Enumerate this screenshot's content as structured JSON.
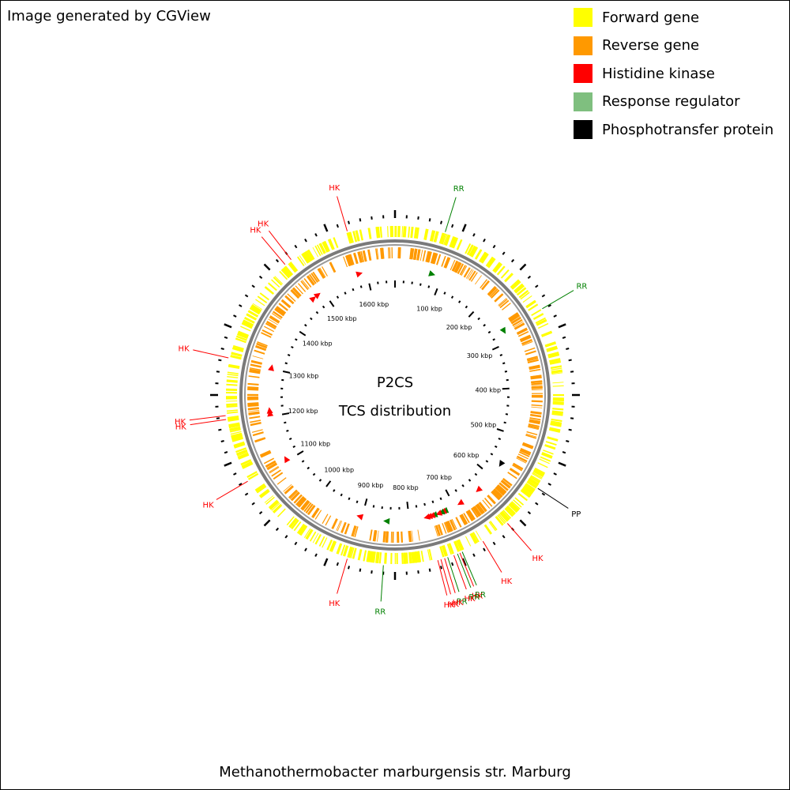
{
  "credit": "Image generated by CGView",
  "legend": [
    {
      "label": "Forward gene",
      "color": "#ffff00"
    },
    {
      "label": "Reverse gene",
      "color": "#ff9900"
    },
    {
      "label": "Histidine kinase",
      "color": "#ff0000"
    },
    {
      "label": "Response regulator",
      "color": "#7fbf7f"
    },
    {
      "label": "Phosphotransfer protein",
      "color": "#000000"
    }
  ],
  "center": {
    "line1": "P2CS",
    "line2": "TCS distribution"
  },
  "species": "Methanothermobacter marburgensis str. Marburg",
  "ticks": [
    {
      "label": "100 kbp",
      "kbp": 100
    },
    {
      "label": "200 kbp",
      "kbp": 200
    },
    {
      "label": "300 kbp",
      "kbp": 300
    },
    {
      "label": "400 kbp",
      "kbp": 400
    },
    {
      "label": "500 kbp",
      "kbp": 500
    },
    {
      "label": "600 kbp",
      "kbp": 600
    },
    {
      "label": "700 kbp",
      "kbp": 700
    },
    {
      "label": "800 kbp",
      "kbp": 800
    },
    {
      "label": "900 kbp",
      "kbp": 900
    },
    {
      "label": "1000 kbp",
      "kbp": 1000
    },
    {
      "label": "1100 kbp",
      "kbp": 1100
    },
    {
      "label": "1200 kbp",
      "kbp": 1200
    },
    {
      "label": "1300 kbp",
      "kbp": 1300
    },
    {
      "label": "1400 kbp",
      "kbp": 1400
    },
    {
      "label": "1500 kbp",
      "kbp": 1500
    },
    {
      "label": "1600 kbp",
      "kbp": 1600
    }
  ],
  "features": [
    {
      "label": "RR",
      "type": "RR",
      "kbp": 79
    },
    {
      "label": "RR",
      "type": "RR",
      "kbp": 275
    },
    {
      "label": "PP",
      "type": "PP",
      "kbp": 568
    },
    {
      "label": "HK",
      "type": "HK",
      "kbp": 640
    },
    {
      "label": "HK",
      "type": "HK",
      "kbp": 687
    },
    {
      "label": "RR",
      "type": "RR",
      "kbp": 723
    },
    {
      "label": "HK",
      "type": "HK",
      "kbp": 727
    },
    {
      "label": "RR",
      "type": "RR",
      "kbp": 731
    },
    {
      "label": "HK",
      "type": "HK",
      "kbp": 737
    },
    {
      "label": "RR",
      "type": "RR",
      "kbp": 747
    },
    {
      "label": "HK",
      "type": "HK",
      "kbp": 752
    },
    {
      "label": "HK",
      "type": "HK",
      "kbp": 758
    },
    {
      "label": "HK",
      "type": "HK",
      "kbp": 763
    },
    {
      "label": "RR",
      "type": "RR",
      "kbp": 848
    },
    {
      "label": "HK",
      "type": "HK",
      "kbp": 905
    },
    {
      "label": "HK",
      "type": "HK",
      "kbp": 1105
    },
    {
      "label": "HK",
      "type": "HK",
      "kbp": 1207
    },
    {
      "label": "HK",
      "type": "HK",
      "kbp": 1213
    },
    {
      "label": "HK",
      "type": "HK",
      "kbp": 1303
    },
    {
      "label": "HK",
      "type": "HK",
      "kbp": 1475
    },
    {
      "label": "HK",
      "type": "HK",
      "kbp": 1487
    },
    {
      "label": "HK",
      "type": "HK",
      "kbp": 1585
    }
  ],
  "type_colors": {
    "HK": "#ff0000",
    "RR": "#008000",
    "PP": "#000000"
  }
}
